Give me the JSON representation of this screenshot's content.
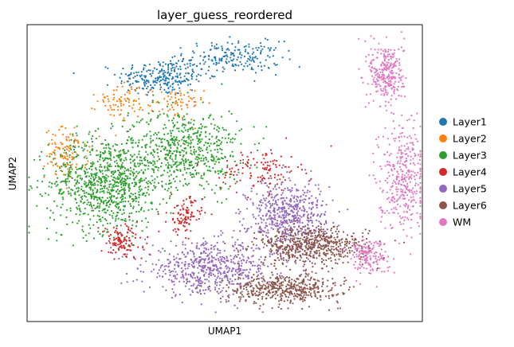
{
  "chart_data": {
    "type": "scatter",
    "title": "layer_guess_reordered",
    "xlabel": "UMAP1",
    "ylabel": "UMAP2",
    "xticks": "none",
    "yticks": "none",
    "grid": false,
    "legend_position": "right",
    "series": [
      {
        "name": "Layer1",
        "color": "#1f77b4",
        "approx_points": 450,
        "clusters": [
          [
            3.4,
            7.4,
            1.0,
            0.5,
            0.55
          ],
          [
            5.2,
            8.0,
            1.1,
            0.45,
            0.45
          ]
        ]
      },
      {
        "name": "Layer2",
        "color": "#ff7f0e",
        "approx_points": 260,
        "clusters": [
          [
            1.0,
            5.1,
            0.5,
            0.7,
            0.45
          ],
          [
            2.4,
            6.7,
            0.55,
            0.5,
            0.3
          ],
          [
            3.8,
            6.6,
            0.6,
            0.45,
            0.25
          ]
        ]
      },
      {
        "name": "Layer3",
        "color": "#2ca02c",
        "approx_points": 1500,
        "clusters": [
          [
            2.0,
            4.2,
            1.3,
            1.3,
            0.6
          ],
          [
            4.0,
            5.2,
            1.3,
            1.1,
            0.4
          ]
        ]
      },
      {
        "name": "Layer4",
        "color": "#d62728",
        "approx_points": 330,
        "clusters": [
          [
            5.9,
            4.6,
            0.9,
            0.6,
            0.35
          ],
          [
            2.4,
            2.4,
            0.5,
            0.5,
            0.35
          ],
          [
            4.0,
            3.2,
            0.4,
            0.5,
            0.3
          ]
        ]
      },
      {
        "name": "Layer5",
        "color": "#9467bd",
        "approx_points": 1150,
        "clusters": [
          [
            4.6,
            1.6,
            1.5,
            0.7,
            0.5
          ],
          [
            6.6,
            3.2,
            0.9,
            1.0,
            0.5
          ]
        ]
      },
      {
        "name": "Layer6",
        "color": "#8c564b",
        "approx_points": 1050,
        "clusters": [
          [
            7.2,
            2.3,
            1.3,
            0.5,
            0.55
          ],
          [
            6.5,
            1.0,
            1.3,
            0.4,
            0.45
          ]
        ]
      },
      {
        "name": "WM",
        "color": "#e377c2",
        "approx_points": 800,
        "clusters": [
          [
            9.1,
            7.5,
            0.4,
            0.9,
            0.35
          ],
          [
            9.5,
            4.4,
            0.55,
            1.5,
            0.45
          ],
          [
            8.6,
            2.0,
            0.45,
            0.5,
            0.2
          ]
        ]
      }
    ],
    "cluster_format": [
      "center_x",
      "center_y",
      "spread_x",
      "spread_y",
      "weight"
    ],
    "xlim": [
      0,
      10
    ],
    "ylim": [
      0,
      9
    ]
  }
}
